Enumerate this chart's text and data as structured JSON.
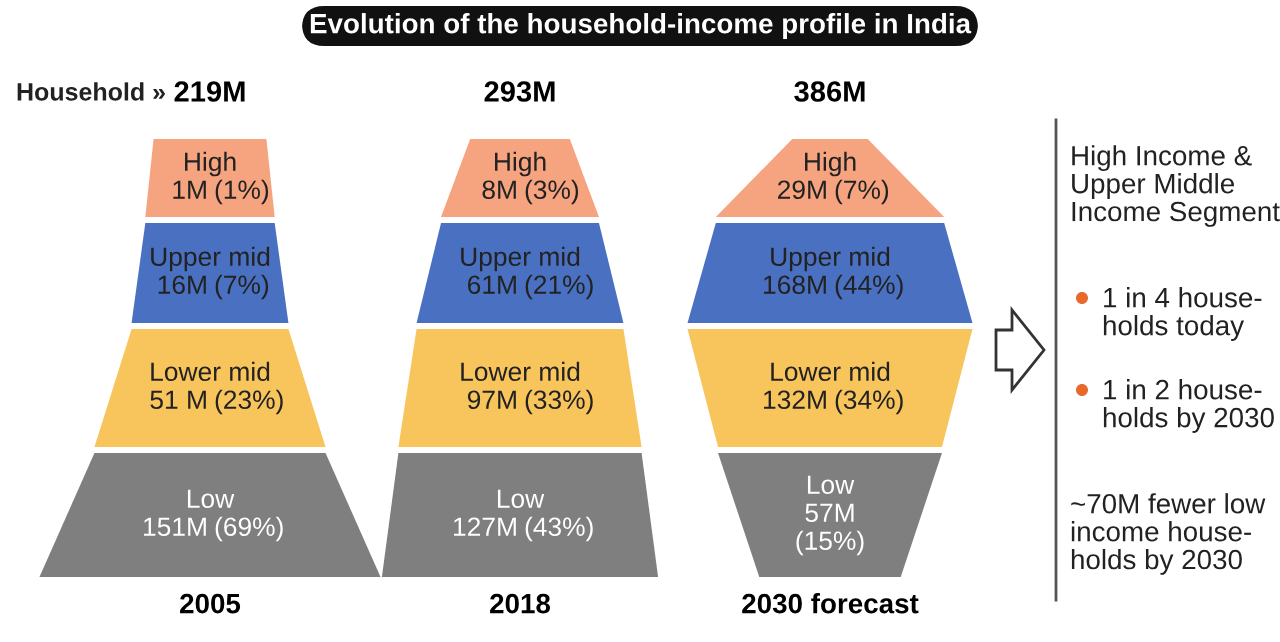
{
  "chart_data": {
    "type": "other",
    "title": "Evolution of the household-income profile in India",
    "categories": [
      "2005",
      "2018",
      "2030 forecast"
    ],
    "totals": [
      "219M",
      "293M",
      "386M"
    ],
    "series": [
      {
        "name": "High",
        "color": "#f5a47f",
        "values": [
          1,
          8,
          29
        ],
        "value_labels": [
          "1M",
          "8M",
          "29M"
        ]
      },
      {
        "name": "Upper mid",
        "color": "#4a70c2",
        "values": [
          16,
          61,
          168
        ],
        "value_labels": [
          "16M",
          "61M",
          "168M"
        ]
      },
      {
        "name": "Lower mid",
        "color": "#f8c45c",
        "values": [
          51,
          97,
          132
        ],
        "value_labels": [
          "51 M",
          "97M",
          "132M"
        ]
      },
      {
        "name": "Low",
        "color": "#7f7f7f",
        "values": [
          151,
          127,
          57
        ],
        "value_labels": [
          "151M",
          "127M",
          "57M"
        ]
      }
    ],
    "annotations": [
      "Household »",
      "High Income &\nUpper Middle\nIncome Segment",
      "1 in 4 house-\nholds today",
      "1 in 2 house-\nholds by 2030",
      "~70M fewer low\nincome house-\nholds by 2030",
      "(1%)",
      "(7%)",
      "(23%)",
      "(69%)",
      "(3%)",
      "(21%)",
      "(33%)",
      "(43%)",
      "(7%)",
      "(44%)",
      "(34%)",
      "(15%)"
    ]
  }
}
